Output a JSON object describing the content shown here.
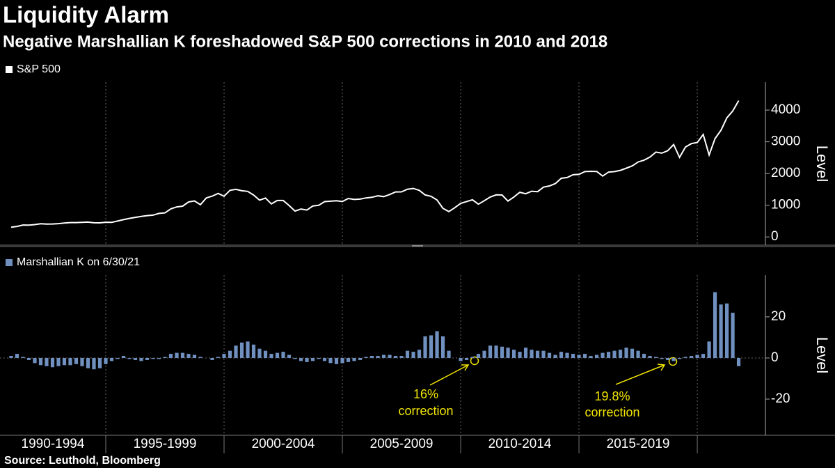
{
  "chart_data": {
    "title": "Liquidity Alarm",
    "subtitle": "Negative Marshallian K foreshadowed S&P 500 corrections in 2010 and 2018",
    "source": "Source: Leuthold, Bloomberg",
    "x": [
      1991,
      1991.25,
      1991.5,
      1991.75,
      1992,
      1992.25,
      1992.5,
      1992.75,
      1993,
      1993.25,
      1993.5,
      1993.75,
      1994,
      1994.25,
      1994.5,
      1994.75,
      1995,
      1995.25,
      1995.5,
      1995.75,
      1996,
      1996.25,
      1996.5,
      1996.75,
      1997,
      1997.25,
      1997.5,
      1997.75,
      1998,
      1998.25,
      1998.5,
      1998.75,
      1999,
      1999.25,
      1999.5,
      1999.75,
      2000,
      2000.25,
      2000.5,
      2000.75,
      2001,
      2001.25,
      2001.5,
      2001.75,
      2002,
      2002.25,
      2002.5,
      2002.75,
      2003,
      2003.25,
      2003.5,
      2003.75,
      2004,
      2004.25,
      2004.5,
      2004.75,
      2005,
      2005.25,
      2005.5,
      2005.75,
      2006,
      2006.25,
      2006.5,
      2006.75,
      2007,
      2007.25,
      2007.5,
      2007.75,
      2008,
      2008.25,
      2008.5,
      2008.75,
      2009,
      2009.25,
      2009.5,
      2009.75,
      2010,
      2010.25,
      2010.5,
      2010.75,
      2011,
      2011.25,
      2011.5,
      2011.75,
      2012,
      2012.25,
      2012.5,
      2012.75,
      2013,
      2013.25,
      2013.5,
      2013.75,
      2014,
      2014.25,
      2014.5,
      2014.75,
      2015,
      2015.25,
      2015.5,
      2015.75,
      2016,
      2016.25,
      2016.5,
      2016.75,
      2017,
      2017.25,
      2017.5,
      2017.75,
      2018,
      2018.25,
      2018.5,
      2018.75,
      2019,
      2019.25,
      2019.5,
      2019.75,
      2020,
      2020.25,
      2020.5,
      2020.75,
      2021,
      2021.25,
      2021.5,
      2021.75
    ],
    "xlim": [
      1990.53,
      2022.88
    ],
    "xticks": [
      1995,
      2000,
      2005,
      2010,
      2015,
      2020
    ],
    "x_periods": [
      "1990-1994",
      "1995-1999",
      "2000-2004",
      "2005-2009",
      "2010-2014",
      "2015-2019"
    ],
    "panels": [
      {
        "type": "line",
        "name": "S&P 500",
        "color": "#ffffff",
        "y_label": "Level",
        "values": [
          306,
          330,
          375,
          371,
          388,
          417,
          404,
          408,
          418,
          436,
          452,
          451,
          459,
          466,
          446,
          444,
          463,
          459,
          501,
          545,
          584,
          616,
          645,
          671,
          687,
          741,
          757,
          885,
          947,
          970,
          1102,
          1134,
          1017,
          1229,
          1286,
          1373,
          1283,
          1469,
          1499,
          1455,
          1436,
          1320,
          1160,
          1224,
          1041,
          1148,
          1147,
          990,
          815,
          880,
          848,
          975,
          996,
          1112,
          1126,
          1141,
          1115,
          1212,
          1181,
          1191,
          1229,
          1248,
          1295,
          1270,
          1336,
          1418,
          1421,
          1503,
          1527,
          1468,
          1323,
          1280,
          1166,
          903,
          798,
          919,
          1057,
          1115,
          1169,
          1031,
          1141,
          1258,
          1326,
          1321,
          1131,
          1258,
          1408,
          1362,
          1441,
          1426,
          1569,
          1606,
          1682,
          1848,
          1872,
          1960,
          1972,
          2059,
          2068,
          2063,
          1920,
          2044,
          2060,
          2099,
          2168,
          2239,
          2363,
          2423,
          2519,
          2674,
          2641,
          2718,
          2914,
          2507,
          2834,
          2942,
          2977,
          3231,
          2585,
          3100,
          3363,
          3756,
          3973,
          4298
        ],
        "ylim": [
          -260,
          4880
        ],
        "yticks": [
          0,
          1000,
          2000,
          3000,
          4000
        ]
      },
      {
        "type": "bar",
        "name": "Marshallian K on 6/30/21",
        "color": "#7090c0",
        "y_label": "Level",
        "values": [
          1,
          2,
          0.5,
          -1,
          -2.5,
          -3.5,
          -4,
          -4.5,
          -4,
          -3.5,
          -3.5,
          -3,
          -4,
          -5,
          -5.5,
          -5,
          -3,
          -1.5,
          -0.5,
          1,
          -0.5,
          -1,
          -1.5,
          -1,
          -0.5,
          -0.5,
          0.5,
          2,
          2.5,
          2.5,
          2,
          1.5,
          0.5,
          0,
          -1,
          0.5,
          2,
          3.5,
          6,
          7.5,
          8,
          6.5,
          4.5,
          3.5,
          2,
          2.5,
          3,
          1.5,
          -0.5,
          -1.5,
          -2,
          -1.5,
          -0.5,
          -1.5,
          -2.5,
          -3,
          -2.5,
          -2,
          -1.5,
          -1,
          0.5,
          1,
          1,
          1.5,
          1.5,
          1,
          1,
          3.5,
          3,
          4,
          10.5,
          11,
          13,
          10.5,
          3.5,
          0,
          -1.5,
          -1,
          0.5,
          2,
          3.5,
          6,
          6,
          5.5,
          5,
          4,
          3,
          5,
          4,
          3.5,
          3.5,
          2.5,
          1.5,
          3,
          2.5,
          2,
          1.5,
          2,
          1,
          1.5,
          2.5,
          3,
          3.5,
          4,
          5,
          4.5,
          3.5,
          2,
          1,
          0.5,
          -0.5,
          -1,
          -1.5,
          -0.5,
          0.5,
          1,
          1.5,
          2,
          8,
          32,
          26,
          26.5,
          22,
          -4
        ],
        "ylim": [
          -37.6,
          40.3
        ],
        "yticks": [
          -20,
          0,
          20
        ],
        "annotations": [
          [
            "16%",
            "correction"
          ],
          [
            "19.8%",
            "correction"
          ]
        ]
      }
    ]
  }
}
